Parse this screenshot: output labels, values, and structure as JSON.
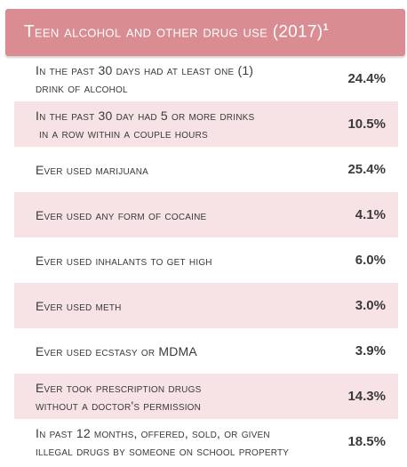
{
  "title": "Teen alcohol and other drug use (2017)",
  "title_footnote": "1",
  "rows": [
    {
      "line1": "In the past 30 days had at least one (1)",
      "line2": "drink of alcohol",
      "value": "24.4%"
    },
    {
      "line1": "In the past 30 day had 5 or more drinks",
      "line2": "in a row within a couple hours",
      "value": "10.5%"
    },
    {
      "line1": "Ever used marijuana",
      "line2": "",
      "value": "25.4%"
    },
    {
      "line1": "Ever used any form of cocaine",
      "line2": "",
      "value": "4.1%"
    },
    {
      "line1": "Ever used inhalants to get high",
      "line2": "",
      "value": "6.0%"
    },
    {
      "line1": "Ever used meth",
      "line2": "",
      "value": "3.0%"
    },
    {
      "line1": "Ever used ecstasy or MDMA",
      "line2": "",
      "value": "3.9%"
    },
    {
      "line1": "Ever took prescription drugs",
      "line2": "without a doctor's permission",
      "value": "14.3%"
    },
    {
      "line1": "In past 12 months, offered, sold, or given",
      "line2": "illegal drugs by someone on school property",
      "value": "18.5%"
    }
  ],
  "colors": {
    "header": "#d98c92",
    "shade": "#f7e3e5",
    "text": "#3a3a3a"
  }
}
